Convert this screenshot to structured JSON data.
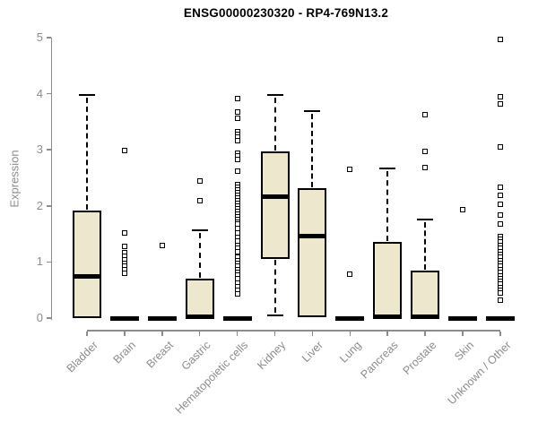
{
  "title": "ENSG00000230320 - RP4-769N13.2",
  "chart_data": {
    "type": "boxplot",
    "title": "ENSG00000230320 - RP4-769N13.2",
    "xlabel": "",
    "ylabel": "Expression",
    "ylim": [
      0,
      5
    ],
    "yticks": [
      0,
      1,
      2,
      3,
      4,
      5
    ],
    "grid": false,
    "legend": false,
    "categories": [
      "Bladder",
      "Brain",
      "Breast",
      "Gastric",
      "Hematopoietic cells",
      "Kidney",
      "Liver",
      "Lung",
      "Pancreas",
      "Prostate",
      "Skin",
      "Unknown / Other"
    ],
    "boxes": [
      {
        "category": "Bladder",
        "lo": 0,
        "q1": 0,
        "median": 0.74,
        "q3": 1.92,
        "hi": 3.98,
        "outliers": []
      },
      {
        "category": "Brain",
        "lo": 0,
        "q1": 0,
        "median": 0,
        "q3": 0,
        "hi": 0,
        "outliers": [
          2.98,
          1.52,
          1.27,
          1.16,
          1.1,
          1.04,
          0.98,
          0.92,
          0.86,
          0.8
        ]
      },
      {
        "category": "Breast",
        "lo": 0,
        "q1": 0,
        "median": 0,
        "q3": 0,
        "hi": 0,
        "outliers": [
          1.3
        ]
      },
      {
        "category": "Gastric",
        "lo": 0,
        "q1": 0,
        "median": 0.02,
        "q3": 0.71,
        "hi": 1.56,
        "outliers": [
          2.44,
          2.1
        ]
      },
      {
        "category": "Hematopoietic cells",
        "lo": 0,
        "q1": 0,
        "median": 0,
        "q3": 0,
        "hi": 0,
        "outliers": [
          3.92,
          3.68,
          3.57,
          3.33,
          3.28,
          3.22,
          3.17,
          2.94,
          2.89,
          2.83,
          2.62,
          2.38,
          2.33,
          2.28,
          2.24,
          2.19,
          2.14,
          2.1,
          2.05,
          2.0,
          1.95,
          1.9,
          1.86,
          1.81,
          1.76,
          1.71,
          1.67,
          1.59,
          1.52,
          1.44,
          1.37,
          1.3,
          1.24,
          1.19,
          1.08,
          1.03,
          0.98,
          0.92,
          0.87,
          0.81,
          0.76,
          0.71,
          0.63,
          0.56,
          0.49,
          0.43
        ]
      },
      {
        "category": "Kidney",
        "lo": 0.05,
        "q1": 1.05,
        "median": 2.17,
        "q3": 2.97,
        "hi": 3.97,
        "outliers": []
      },
      {
        "category": "Liver",
        "lo": 0.02,
        "q1": 0.02,
        "median": 1.46,
        "q3": 2.32,
        "hi": 3.69,
        "outliers": []
      },
      {
        "category": "Lung",
        "lo": 0,
        "q1": 0,
        "median": 0,
        "q3": 0,
        "hi": 0,
        "outliers": [
          2.65,
          0.78
        ]
      },
      {
        "category": "Pancreas",
        "lo": 0,
        "q1": 0,
        "median": 0.02,
        "q3": 1.35,
        "hi": 2.67,
        "outliers": []
      },
      {
        "category": "Prostate",
        "lo": 0,
        "q1": 0,
        "median": 0.02,
        "q3": 0.84,
        "hi": 1.76,
        "outliers": [
          3.62,
          2.97,
          2.68
        ]
      },
      {
        "category": "Skin",
        "lo": 0,
        "q1": 0,
        "median": 0,
        "q3": 0,
        "hi": 0,
        "outliers": [
          1.94
        ]
      },
      {
        "category": "Unknown / Other",
        "lo": 0,
        "q1": 0,
        "median": 0,
        "q3": 0,
        "hi": 0,
        "outliers": [
          4.97,
          3.94,
          3.81,
          3.05,
          2.33,
          2.19,
          2.03,
          1.83,
          1.67,
          1.46,
          1.4,
          1.35,
          1.29,
          1.24,
          1.18,
          1.13,
          1.08,
          1.02,
          0.97,
          0.92,
          0.86,
          0.81,
          0.75,
          0.7,
          0.65,
          0.6,
          0.54,
          0.49,
          0.44,
          0.32
        ]
      }
    ],
    "colors": {
      "box_fill": "#EDE7CD",
      "box_border": "#000000",
      "median": "#000000",
      "whisker": "#000000",
      "outlier_stroke": "#000000",
      "axis": "#8C8C8C",
      "tick_label": "#8C8C8C",
      "title": "#000000",
      "background": "#FFFFFF"
    },
    "layout_hints": {
      "x_label_rotation_deg": -45,
      "whisker_style": "dashed",
      "outlier_marker": "open-square"
    }
  }
}
